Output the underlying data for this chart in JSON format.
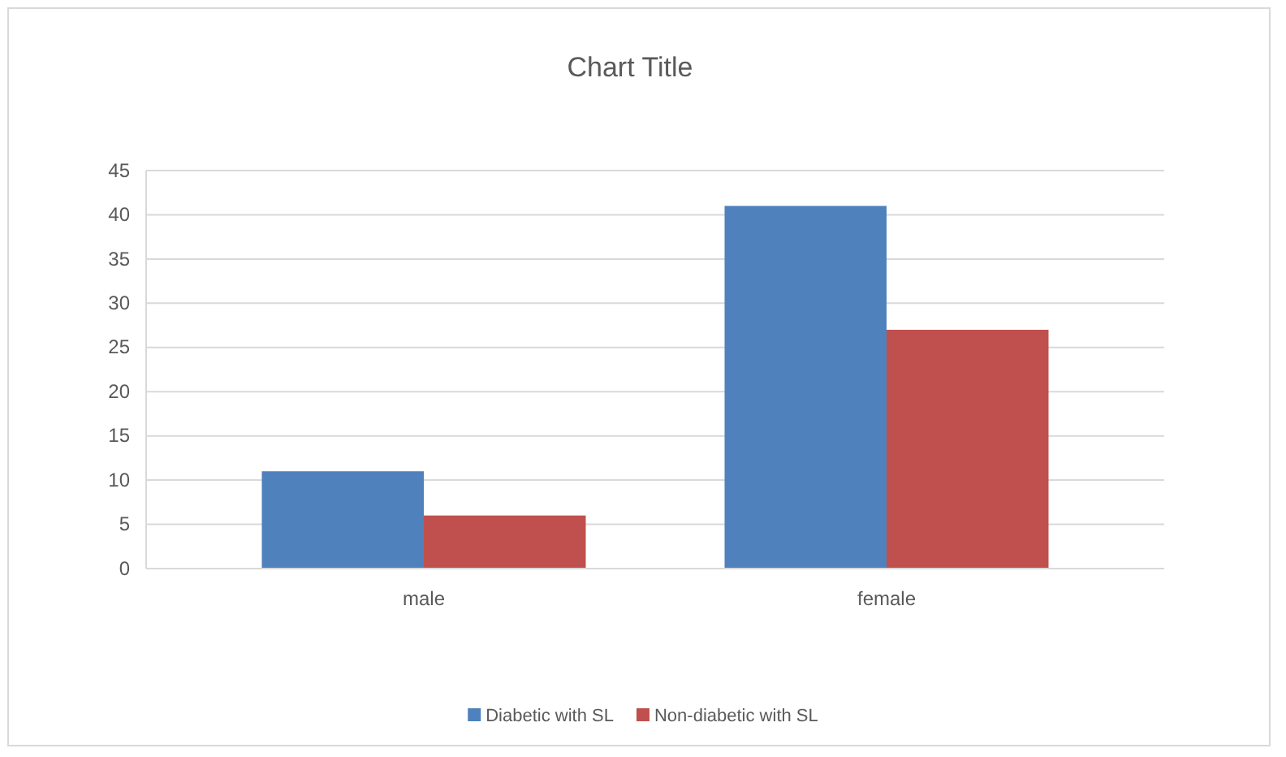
{
  "chart_data": {
    "type": "bar",
    "title": "Chart Title",
    "categories": [
      "male",
      "female"
    ],
    "series": [
      {
        "name": "Diabetic with SL",
        "color": "#4f81bd",
        "values": [
          11,
          41
        ]
      },
      {
        "name": "Non-diabetic with SL",
        "color": "#c0504d",
        "values": [
          6,
          27
        ]
      }
    ],
    "ylim": [
      0,
      45
    ],
    "yticks": [
      0,
      5,
      10,
      15,
      20,
      25,
      30,
      35,
      40,
      45
    ],
    "grid": true,
    "legend": "bottom"
  }
}
